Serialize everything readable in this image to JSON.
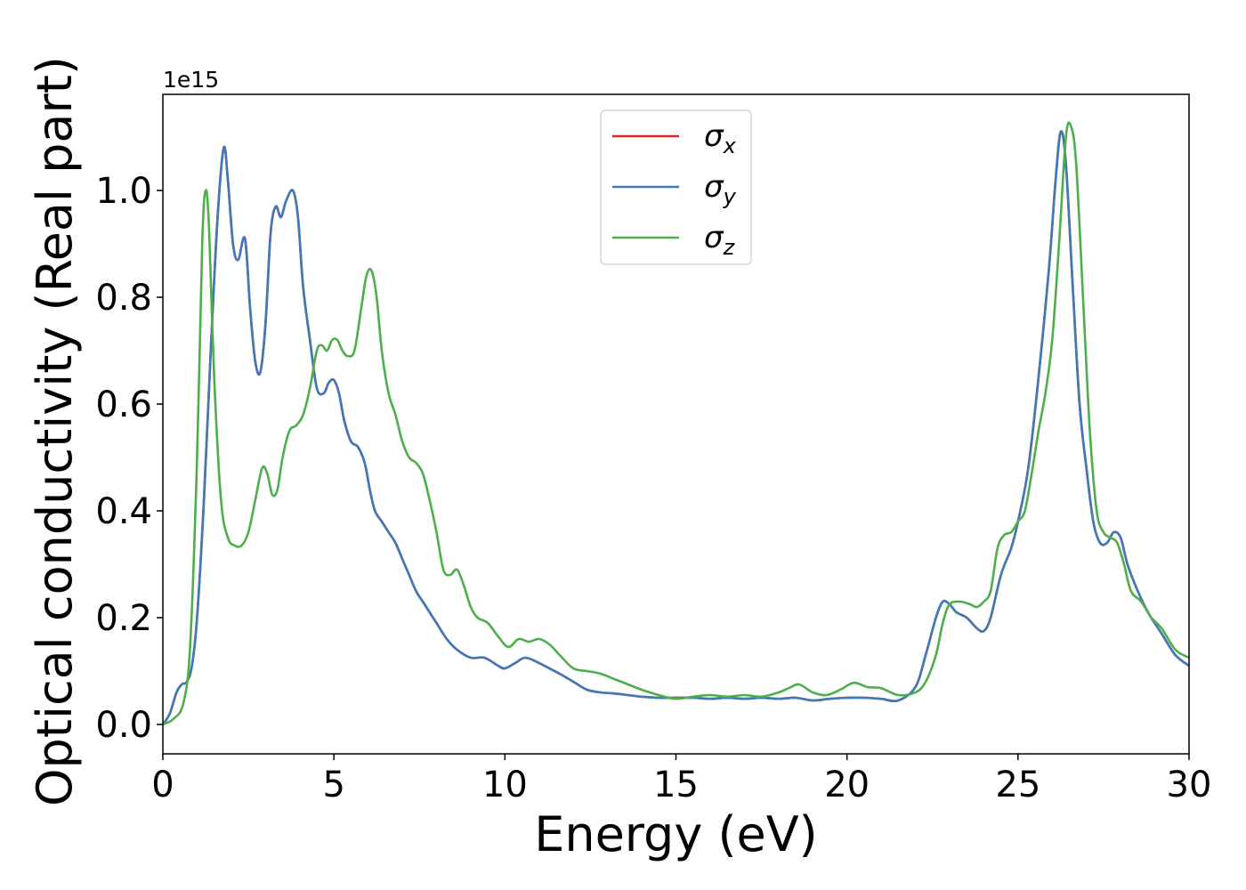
{
  "chart_data": {
    "type": "line",
    "xlabel": "Energy (eV)",
    "ylabel": "Optical conductivity (Real part)",
    "y_offset_label": "1e15",
    "xlim": [
      0,
      30
    ],
    "ylim": [
      -0.055,
      1.18
    ],
    "y_scale_note": "values in units of 1e15",
    "xticks": [
      0,
      5,
      10,
      15,
      20,
      25,
      30
    ],
    "xtick_labels": [
      "0",
      "5",
      "10",
      "15",
      "20",
      "25",
      "30"
    ],
    "yticks": [
      0.0,
      0.2,
      0.4,
      0.6,
      0.8,
      1.0
    ],
    "ytick_labels": [
      "0.0",
      "0.2",
      "0.4",
      "0.6",
      "0.8",
      "1.0"
    ],
    "grid": false,
    "legend_position": "top-center",
    "series": [
      {
        "name": "σx",
        "symbol": "σ",
        "subscript": "x",
        "color": "#d62728",
        "x": [
          0,
          0.2,
          0.4,
          0.55,
          0.7,
          0.85,
          1.0,
          1.2,
          1.4,
          1.6,
          1.78,
          1.9,
          2.05,
          2.2,
          2.4,
          2.55,
          2.7,
          2.85,
          3.0,
          3.15,
          3.3,
          3.45,
          3.6,
          3.8,
          3.95,
          4.1,
          4.3,
          4.5,
          4.7,
          4.85,
          5.0,
          5.15,
          5.3,
          5.5,
          5.7,
          5.9,
          6.05,
          6.2,
          6.4,
          6.6,
          6.8,
          7.0,
          7.2,
          7.4,
          7.6,
          7.8,
          8.0,
          8.3,
          8.6,
          9.0,
          9.4,
          9.8,
          10.0,
          10.3,
          10.6,
          11.0,
          11.3,
          11.6,
          12.0,
          12.4,
          12.8,
          13.2,
          13.6,
          14.0,
          14.5,
          15.0,
          15.5,
          16.0,
          16.5,
          17.0,
          17.5,
          18.0,
          18.5,
          19.0,
          19.5,
          20.0,
          20.5,
          21.0,
          21.5,
          22.0,
          22.3,
          22.6,
          22.8,
          23.0,
          23.2,
          23.5,
          23.8,
          24.0,
          24.2,
          24.5,
          24.8,
          25.0,
          25.3,
          25.6,
          25.9,
          26.1,
          26.25,
          26.4,
          26.6,
          26.8,
          27.0,
          27.2,
          27.4,
          27.6,
          27.8,
          28.0,
          28.2,
          28.5,
          28.8,
          29.2,
          29.6,
          30.0
        ],
        "values": [
          0.0,
          0.02,
          0.06,
          0.075,
          0.08,
          0.11,
          0.2,
          0.42,
          0.7,
          0.95,
          1.08,
          1.02,
          0.9,
          0.87,
          0.91,
          0.78,
          0.68,
          0.66,
          0.75,
          0.92,
          0.97,
          0.95,
          0.98,
          1.0,
          0.95,
          0.82,
          0.72,
          0.63,
          0.62,
          0.64,
          0.645,
          0.62,
          0.57,
          0.53,
          0.52,
          0.49,
          0.44,
          0.4,
          0.38,
          0.36,
          0.34,
          0.31,
          0.28,
          0.25,
          0.23,
          0.21,
          0.19,
          0.16,
          0.14,
          0.125,
          0.125,
          0.11,
          0.105,
          0.115,
          0.125,
          0.115,
          0.105,
          0.095,
          0.08,
          0.065,
          0.06,
          0.058,
          0.055,
          0.052,
          0.05,
          0.05,
          0.05,
          0.048,
          0.05,
          0.048,
          0.05,
          0.048,
          0.05,
          0.045,
          0.048,
          0.05,
          0.05,
          0.048,
          0.045,
          0.07,
          0.13,
          0.2,
          0.23,
          0.225,
          0.21,
          0.2,
          0.18,
          0.175,
          0.2,
          0.28,
          0.33,
          0.38,
          0.48,
          0.65,
          0.85,
          1.02,
          1.11,
          1.05,
          0.82,
          0.6,
          0.48,
          0.38,
          0.34,
          0.34,
          0.36,
          0.35,
          0.3,
          0.25,
          0.21,
          0.17,
          0.13,
          0.11
        ]
      },
      {
        "name": "σy",
        "symbol": "σ",
        "subscript": "y",
        "color": "#3f7ab8",
        "x": [
          0,
          0.2,
          0.4,
          0.55,
          0.7,
          0.85,
          1.0,
          1.2,
          1.4,
          1.6,
          1.78,
          1.9,
          2.05,
          2.2,
          2.4,
          2.55,
          2.7,
          2.85,
          3.0,
          3.15,
          3.3,
          3.45,
          3.6,
          3.8,
          3.95,
          4.1,
          4.3,
          4.5,
          4.7,
          4.85,
          5.0,
          5.15,
          5.3,
          5.5,
          5.7,
          5.9,
          6.05,
          6.2,
          6.4,
          6.6,
          6.8,
          7.0,
          7.2,
          7.4,
          7.6,
          7.8,
          8.0,
          8.3,
          8.6,
          9.0,
          9.4,
          9.8,
          10.0,
          10.3,
          10.6,
          11.0,
          11.3,
          11.6,
          12.0,
          12.4,
          12.8,
          13.2,
          13.6,
          14.0,
          14.5,
          15.0,
          15.5,
          16.0,
          16.5,
          17.0,
          17.5,
          18.0,
          18.5,
          19.0,
          19.5,
          20.0,
          20.5,
          21.0,
          21.5,
          22.0,
          22.3,
          22.6,
          22.8,
          23.0,
          23.2,
          23.5,
          23.8,
          24.0,
          24.2,
          24.5,
          24.8,
          25.0,
          25.3,
          25.6,
          25.9,
          26.1,
          26.25,
          26.4,
          26.6,
          26.8,
          27.0,
          27.2,
          27.4,
          27.6,
          27.8,
          28.0,
          28.2,
          28.5,
          28.8,
          29.2,
          29.6,
          30.0
        ],
        "values": [
          0.0,
          0.02,
          0.06,
          0.075,
          0.08,
          0.11,
          0.2,
          0.42,
          0.7,
          0.95,
          1.08,
          1.02,
          0.9,
          0.87,
          0.91,
          0.78,
          0.68,
          0.66,
          0.75,
          0.92,
          0.97,
          0.95,
          0.98,
          1.0,
          0.95,
          0.82,
          0.72,
          0.63,
          0.62,
          0.64,
          0.645,
          0.62,
          0.57,
          0.53,
          0.52,
          0.49,
          0.44,
          0.4,
          0.38,
          0.36,
          0.34,
          0.31,
          0.28,
          0.25,
          0.23,
          0.21,
          0.19,
          0.16,
          0.14,
          0.125,
          0.125,
          0.11,
          0.105,
          0.115,
          0.125,
          0.115,
          0.105,
          0.095,
          0.08,
          0.065,
          0.06,
          0.058,
          0.055,
          0.052,
          0.05,
          0.05,
          0.05,
          0.048,
          0.05,
          0.048,
          0.05,
          0.048,
          0.05,
          0.045,
          0.048,
          0.05,
          0.05,
          0.048,
          0.045,
          0.07,
          0.13,
          0.2,
          0.23,
          0.225,
          0.21,
          0.2,
          0.18,
          0.175,
          0.2,
          0.28,
          0.33,
          0.38,
          0.48,
          0.65,
          0.85,
          1.02,
          1.11,
          1.05,
          0.82,
          0.6,
          0.48,
          0.38,
          0.34,
          0.34,
          0.36,
          0.35,
          0.3,
          0.25,
          0.21,
          0.17,
          0.13,
          0.11
        ]
      },
      {
        "name": "σz",
        "symbol": "σ",
        "subscript": "z",
        "color": "#4daf4a",
        "x": [
          0,
          0.3,
          0.6,
          0.8,
          1.0,
          1.15,
          1.25,
          1.35,
          1.5,
          1.7,
          1.9,
          2.1,
          2.3,
          2.5,
          2.7,
          2.9,
          3.05,
          3.2,
          3.35,
          3.5,
          3.7,
          3.9,
          4.1,
          4.3,
          4.5,
          4.65,
          4.8,
          4.95,
          5.1,
          5.25,
          5.4,
          5.6,
          5.8,
          5.95,
          6.1,
          6.25,
          6.4,
          6.6,
          6.8,
          7.0,
          7.2,
          7.4,
          7.6,
          7.8,
          8.0,
          8.2,
          8.4,
          8.6,
          8.8,
          9.0,
          9.2,
          9.5,
          9.8,
          10.1,
          10.4,
          10.7,
          11.0,
          11.3,
          11.6,
          12.0,
          12.4,
          12.8,
          13.2,
          13.6,
          14.0,
          14.5,
          15.0,
          15.5,
          16.0,
          16.5,
          17.0,
          17.5,
          18.0,
          18.3,
          18.6,
          19.0,
          19.4,
          19.8,
          20.2,
          20.6,
          21.0,
          21.5,
          22.0,
          22.3,
          22.6,
          22.8,
          23.0,
          23.3,
          23.6,
          23.8,
          24.0,
          24.2,
          24.4,
          24.6,
          24.8,
          25.0,
          25.2,
          25.4,
          25.6,
          25.8,
          26.0,
          26.2,
          26.4,
          26.55,
          26.7,
          26.9,
          27.1,
          27.3,
          27.5,
          27.7,
          27.9,
          28.1,
          28.3,
          28.6,
          28.9,
          29.2,
          29.6,
          30.0
        ],
        "values": [
          0.0,
          0.01,
          0.04,
          0.15,
          0.5,
          0.9,
          1.0,
          0.93,
          0.65,
          0.42,
          0.35,
          0.335,
          0.335,
          0.36,
          0.42,
          0.48,
          0.47,
          0.43,
          0.44,
          0.5,
          0.55,
          0.56,
          0.58,
          0.63,
          0.7,
          0.71,
          0.7,
          0.72,
          0.72,
          0.7,
          0.69,
          0.7,
          0.78,
          0.84,
          0.85,
          0.8,
          0.7,
          0.62,
          0.58,
          0.53,
          0.5,
          0.49,
          0.47,
          0.42,
          0.36,
          0.29,
          0.28,
          0.29,
          0.26,
          0.22,
          0.2,
          0.19,
          0.165,
          0.145,
          0.16,
          0.155,
          0.16,
          0.15,
          0.13,
          0.105,
          0.1,
          0.095,
          0.085,
          0.075,
          0.065,
          0.055,
          0.048,
          0.052,
          0.055,
          0.052,
          0.055,
          0.052,
          0.06,
          0.068,
          0.075,
          0.06,
          0.055,
          0.065,
          0.078,
          0.07,
          0.068,
          0.055,
          0.06,
          0.08,
          0.13,
          0.19,
          0.225,
          0.23,
          0.225,
          0.22,
          0.23,
          0.25,
          0.33,
          0.355,
          0.36,
          0.38,
          0.4,
          0.47,
          0.55,
          0.62,
          0.72,
          0.9,
          1.1,
          1.12,
          1.05,
          0.8,
          0.55,
          0.4,
          0.36,
          0.35,
          0.34,
          0.3,
          0.25,
          0.23,
          0.2,
          0.18,
          0.14,
          0.125
        ]
      }
    ]
  }
}
